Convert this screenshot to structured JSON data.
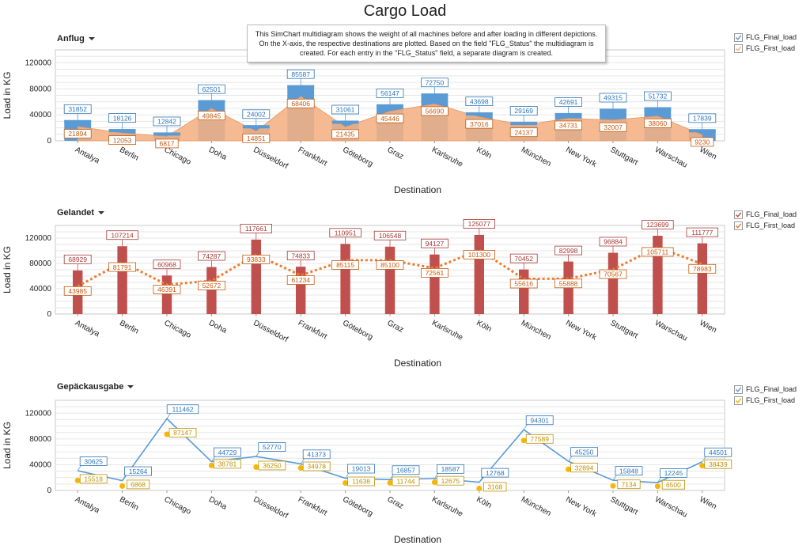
{
  "title": "Cargo Load",
  "tooltip": "This SimChart multidiagram shows the weight of all machines before and after loading in different depictions. On the X-axis, the respective destinations are plotted. Based on the field \"FLG_Status\" the multidiagram is created. For each entry in the \"FLG_Status\" field, a separate diagram is created.",
  "chart_data": [
    {
      "type": "bar",
      "panel_title": "Anflug",
      "xlabel": "Destination",
      "ylabel": "Load in KG",
      "ylim": [
        0,
        140000
      ],
      "yticks": [
        0,
        40000,
        80000,
        120000
      ],
      "grid": true,
      "legend_position": "right",
      "categories": [
        "Antalya",
        "Berlin",
        "Chicago",
        "Doha",
        "Düsseldorf",
        "Frankfurt",
        "Göteborg",
        "Graz",
        "Karlsruhe",
        "Köln",
        "München",
        "New York",
        "Stuttgart",
        "Warschau",
        "Wien"
      ],
      "series": [
        {
          "name": "FLG_Final_load",
          "type": "bar",
          "color": "#5b9bd5",
          "values": [
            31852,
            18126,
            12842,
            62501,
            24002,
            85587,
            31061,
            56147,
            72750,
            43698,
            29169,
            42691,
            49315,
            51732,
            17839
          ]
        },
        {
          "name": "FLG_First_load",
          "type": "area",
          "color": "#f4b183",
          "values": [
            21894,
            12053,
            6817,
            49845,
            14851,
            68406,
            21435,
            45446,
            56690,
            37016,
            24137,
            34731,
            32007,
            38060,
            9230
          ]
        }
      ]
    },
    {
      "type": "bar",
      "panel_title": "Gelandet",
      "xlabel": "Destination",
      "ylabel": "Load in KG",
      "ylim": [
        0,
        140000
      ],
      "yticks": [
        0,
        40000,
        80000,
        120000
      ],
      "grid": true,
      "legend_position": "right",
      "categories": [
        "Antalya",
        "Berlin",
        "Chicago",
        "Doha",
        "Düsseldorf",
        "Frankfurt",
        "Göteborg",
        "Graz",
        "Karlsruhe",
        "Köln",
        "München",
        "New York",
        "Stuttgart",
        "Warschau",
        "Wien"
      ],
      "series": [
        {
          "name": "FLG_Final_load",
          "type": "bar",
          "color": "#c0504d",
          "values": [
            68929,
            107214,
            60968,
            74287,
            117661,
            74833,
            110951,
            106548,
            94127,
            125077,
            70452,
            82998,
            96884,
            123699,
            111777
          ]
        },
        {
          "name": "FLG_First_load",
          "type": "line",
          "color": "#ed7d31",
          "values": [
            43985,
            81791,
            46391,
            52672,
            93833,
            61234,
            85115,
            85100,
            72561,
            101300,
            55616,
            55888,
            70567,
            105711,
            78983
          ]
        }
      ]
    },
    {
      "type": "line",
      "panel_title": "Gepäckausgabe",
      "xlabel": "Destination",
      "ylabel": "Load in KG",
      "ylim": [
        0,
        140000
      ],
      "yticks": [
        0,
        40000,
        80000,
        120000
      ],
      "grid": true,
      "legend_position": "right",
      "categories": [
        "Antalya",
        "Berlin",
        "Chicago",
        "Doha",
        "Düsseldorf",
        "Frankfurt",
        "Göteborg",
        "Graz",
        "Karlsruhe",
        "Köln",
        "München",
        "New York",
        "Stuttgart",
        "Warschau",
        "Wien"
      ],
      "series": [
        {
          "name": "FLG_Final_load",
          "type": "line",
          "color": "#5b9bd5",
          "values": [
            30625,
            15264,
            111462,
            44729,
            52770,
            41373,
            19013,
            16857,
            18587,
            12768,
            94301,
            45250,
            15848,
            12245,
            44501
          ]
        },
        {
          "name": "FLG_First_load",
          "type": "scatter",
          "color": "#f5b700",
          "values": [
            15518,
            6868,
            87147,
            38781,
            36250,
            34978,
            11638,
            11744,
            12675,
            3168,
            77589,
            32894,
            7134,
            6500,
            38439
          ]
        }
      ]
    }
  ]
}
